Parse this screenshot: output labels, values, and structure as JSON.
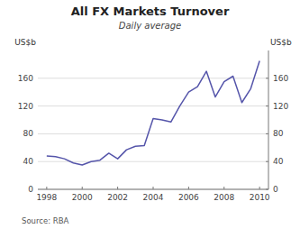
{
  "chart_data": {
    "type": "line",
    "title": "All FX Markets Turnover",
    "subtitle": "Daily average",
    "y_label": "US$b",
    "y2_label": "US$b",
    "source": "Source: RBA",
    "color": "#5555aa",
    "grid": true,
    "xlim": [
      1997.5,
      2010.5
    ],
    "ylim": [
      0,
      200
    ],
    "y2lim": [
      0,
      200
    ],
    "xticks": [
      1998,
      2000,
      2002,
      2004,
      2006,
      2008,
      2010
    ],
    "yticks": [
      0,
      40,
      80,
      120,
      160
    ],
    "y2ticks": [
      0,
      40,
      80,
      120,
      160
    ],
    "x": [
      1998,
      1998.5,
      1999,
      1999.5,
      2000,
      2000.5,
      2001,
      2001.5,
      2002,
      2002.5,
      2003,
      2003.5,
      2004,
      2004.5,
      2005,
      2005.5,
      2006,
      2006.5,
      2007,
      2007.5,
      2008,
      2008.5,
      2009,
      2009.5,
      2010
    ],
    "values": [
      48,
      47,
      44,
      38,
      35,
      40,
      42,
      52,
      44,
      57,
      62,
      63,
      102,
      100,
      97,
      120,
      140,
      148,
      170,
      133,
      155,
      163,
      125,
      145,
      185
    ]
  }
}
